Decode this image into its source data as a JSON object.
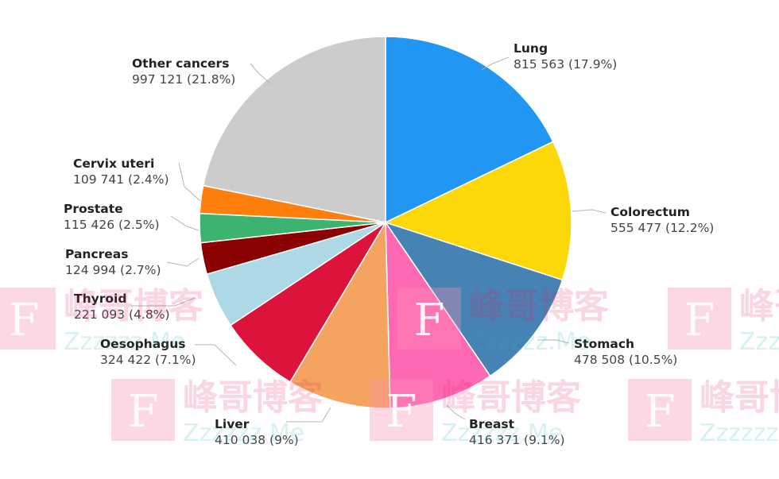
{
  "chart_data": {
    "type": "pie",
    "slices": [
      {
        "name": "Lung",
        "value_label": "815 563 (17.9%)",
        "value": 815563,
        "percent": 17.9,
        "color": "#2196f3"
      },
      {
        "name": "Colorectum",
        "value_label": "555 477 (12.2%)",
        "value": 555477,
        "percent": 12.2,
        "color": "#fcd808"
      },
      {
        "name": "Stomach",
        "value_label": "478 508 (10.5%)",
        "value": 478508,
        "percent": 10.5,
        "color": "#4682b4"
      },
      {
        "name": "Breast",
        "value_label": "416 371 (9.1%)",
        "value": 416371,
        "percent": 9.1,
        "color": "#ff69b4"
      },
      {
        "name": "Liver",
        "value_label": "410 038 (9%)",
        "value": 410038,
        "percent": 9.0,
        "color": "#f4a460"
      },
      {
        "name": "Oesophagus",
        "value_label": "324 422 (7.1%)",
        "value": 324422,
        "percent": 7.1,
        "color": "#dc143c"
      },
      {
        "name": "Thyroid",
        "value_label": "221 093 (4.8%)",
        "value": 221093,
        "percent": 4.8,
        "color": "#add8e6"
      },
      {
        "name": "Pancreas",
        "value_label": "124 994 (2.7%)",
        "value": 124994,
        "percent": 2.7,
        "color": "#8b0000"
      },
      {
        "name": "Prostate",
        "value_label": "115 426 (2.5%)",
        "value": 115426,
        "percent": 2.5,
        "color": "#3cb371"
      },
      {
        "name": "Cervix uteri",
        "value_label": "109 741 (2.4%)",
        "value": 109741,
        "percent": 2.4,
        "color": "#ff7f0e"
      },
      {
        "name": "Other cancers",
        "value_label": "997 121 (21.8%)",
        "value": 997121,
        "percent": 21.8,
        "color": "#cccccc"
      }
    ]
  },
  "watermark": {
    "brand": "峰哥博客",
    "domain": "Zzzzzz.Me",
    "logo_letter": "F"
  }
}
